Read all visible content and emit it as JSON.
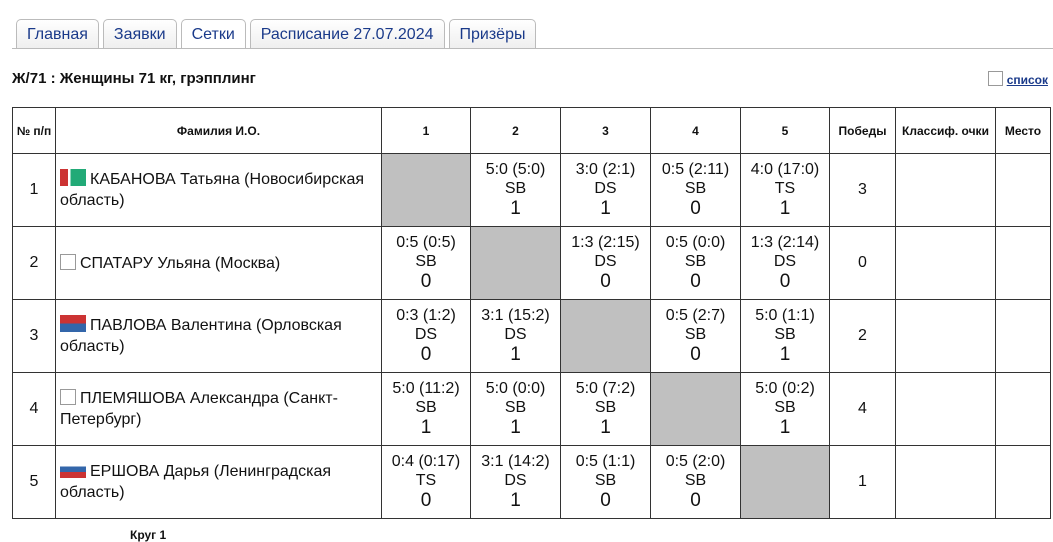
{
  "tabs": [
    "Главная",
    "Заявки",
    "Сетки",
    "Расписание 27.07.2024",
    "Призёры"
  ],
  "active_tab": 2,
  "title": "Ж/71 : Женщины 71 кг, грэпплинг",
  "list_link": "список",
  "table": {
    "header": [
      "№ п/п",
      "Фамилия И.О.",
      "1",
      "2",
      "3",
      "4",
      "5",
      "Победы",
      "Классиф. очки",
      "Место"
    ],
    "rows": [
      {
        "num": "1",
        "name": "КАБАНОВА Татьяна (Новосибирская область)",
        "cells": [
          null,
          {
            "score": "5:0 (5:0)",
            "method": "SB",
            "points": 1
          },
          {
            "score": "3:0 (2:1)",
            "method": "DS",
            "points": 1
          },
          {
            "score": "0:5 (2:11)",
            "method": "SB",
            "points": 0
          },
          {
            "score": "4:0 (17:0)",
            "method": "TS",
            "points": 1
          }
        ],
        "wins": 3
      },
      {
        "num": "2",
        "name": "СПАТАРУ Ульяна (Москва)",
        "cells": [
          {
            "score": "0:5 (0:5)",
            "method": "SB",
            "points": 0
          },
          null,
          {
            "score": "1:3 (2:15)",
            "method": "DS",
            "points": 0
          },
          {
            "score": "0:5 (0:0)",
            "method": "SB",
            "points": 0
          },
          {
            "score": "1:3 (2:14)",
            "method": "DS",
            "points": 0
          }
        ],
        "wins": 0
      },
      {
        "num": "3",
        "name": "ПАВЛОВА Валентина (Орловская область)",
        "cells": [
          {
            "score": "0:3 (1:2)",
            "method": "DS",
            "points": 0
          },
          {
            "score": "3:1 (15:2)",
            "method": "DS",
            "points": 1
          },
          null,
          {
            "score": "0:5 (2:7)",
            "method": "SB",
            "points": 0
          },
          {
            "score": "5:0 (1:1)",
            "method": "SB",
            "points": 1
          }
        ],
        "wins": 2
      },
      {
        "num": "4",
        "name": "ПЛЕМЯШОВА Александра (Санкт-Петербург)",
        "cells": [
          {
            "score": "5:0 (11:2)",
            "method": "SB",
            "points": 1
          },
          {
            "score": "5:0 (0:0)",
            "method": "SB",
            "points": 1
          },
          {
            "score": "5:0 (7:2)",
            "method": "SB",
            "points": 1
          },
          null,
          {
            "score": "5:0 (0:2)",
            "method": "SB",
            "points": 1
          }
        ],
        "wins": 4
      },
      {
        "num": "5",
        "name": "ЕРШОВА Дарья (Ленинградская область)",
        "cells": [
          {
            "score": "0:4 (0:17)",
            "method": "TS",
            "points": 0
          },
          {
            "score": "3:1 (14:2)",
            "method": "DS",
            "points": 1
          },
          {
            "score": "0:5 (1:1)",
            "method": "SB",
            "points": 0
          },
          {
            "score": "0:5 (2:0)",
            "method": "SB",
            "points": 0
          },
          null
        ],
        "wins": 1
      }
    ]
  },
  "footer": "Круг 1"
}
